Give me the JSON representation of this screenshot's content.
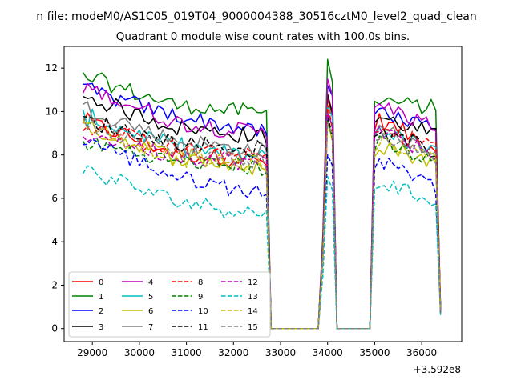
{
  "chart_data": {
    "type": "line",
    "suptitle": "n file: modeM0/AS1C05_019T04_9000004388_30516cztM0_level2_quad_clean",
    "title": "Quadrant 0 module wise count rates with 100.0s bins.",
    "xlabel": "",
    "ylabel": "",
    "x_offset_label": "+3.592e8",
    "xlim": [
      28400,
      36850
    ],
    "ylim": [
      -0.6,
      13.0
    ],
    "x_ticks": [
      29000,
      30000,
      31000,
      32000,
      33000,
      34000,
      35000,
      36000
    ],
    "x_tick_labels": [
      "29000",
      "30000",
      "31000",
      "32000",
      "33000",
      "34000",
      "35000",
      "36000"
    ],
    "y_ticks": [
      0,
      2,
      4,
      6,
      8,
      10,
      12
    ],
    "y_tick_labels": [
      "0",
      "2",
      "4",
      "6",
      "8",
      "10",
      "12"
    ],
    "grid": false,
    "legend_position": "lower-left",
    "segments": [
      {
        "x_start": 28800,
        "x_end": 32700,
        "shape": "plateau"
      },
      {
        "x_start": 32800,
        "x_end": 33800,
        "shape": "zero"
      },
      {
        "x_start": 33900,
        "x_end": 34200,
        "shape": "spike"
      },
      {
        "x_start": 34200,
        "x_end": 34900,
        "shape": "zero"
      },
      {
        "x_start": 35000,
        "x_end": 36400,
        "shape": "plateau"
      }
    ],
    "series": [
      {
        "name": "0",
        "color": "#ff0000",
        "dashed": false,
        "start": 9.6,
        "mid": 8.1,
        "end": 7.7,
        "spike": 10.6,
        "seg2_start": 9.7,
        "seg2_end": 8.3
      },
      {
        "name": "1",
        "color": "#008000",
        "dashed": false,
        "start": 11.6,
        "mid": 10.3,
        "end": 9.9,
        "spike": 12.4,
        "seg2_start": 10.6,
        "seg2_end": 10.1
      },
      {
        "name": "2",
        "color": "#0000ff",
        "dashed": false,
        "start": 11.0,
        "mid": 9.8,
        "end": 9.0,
        "spike": 11.2,
        "seg2_start": 10.2,
        "seg2_end": 9.0
      },
      {
        "name": "3",
        "color": "#000000",
        "dashed": false,
        "start": 10.7,
        "mid": 9.3,
        "end": 8.8,
        "spike": 10.8,
        "seg2_start": 9.8,
        "seg2_end": 8.9
      },
      {
        "name": "4",
        "color": "#bf00bf",
        "dashed": false,
        "start": 11.2,
        "mid": 9.5,
        "end": 9.0,
        "spike": 11.5,
        "seg2_start": 10.4,
        "seg2_end": 9.3
      },
      {
        "name": "5",
        "color": "#00bfbf",
        "dashed": false,
        "start": 9.8,
        "mid": 8.4,
        "end": 7.8,
        "spike": 10.3,
        "seg2_start": 9.3,
        "seg2_end": 8.1
      },
      {
        "name": "6",
        "color": "#bfbf00",
        "dashed": false,
        "start": 9.3,
        "mid": 7.9,
        "end": 7.3,
        "spike": 9.6,
        "seg2_start": 8.6,
        "seg2_end": 7.6
      },
      {
        "name": "7",
        "color": "#808080",
        "dashed": false,
        "start": 10.2,
        "mid": 8.7,
        "end": 8.1,
        "spike": 10.1,
        "seg2_start": 9.3,
        "seg2_end": 8.2
      },
      {
        "name": "8",
        "color": "#ff0000",
        "dashed": true,
        "start": 9.3,
        "mid": 8.3,
        "end": 7.9,
        "spike": 10.3,
        "seg2_start": 9.2,
        "seg2_end": 8.5
      },
      {
        "name": "9",
        "color": "#008000",
        "dashed": true,
        "start": 8.6,
        "mid": 7.7,
        "end": 7.4,
        "spike": 9.6,
        "seg2_start": 8.6,
        "seg2_end": 7.6
      },
      {
        "name": "10",
        "color": "#0000ff",
        "dashed": true,
        "start": 8.8,
        "mid": 7.0,
        "end": 6.2,
        "spike": 8.0,
        "seg2_start": 7.9,
        "seg2_end": 6.5
      },
      {
        "name": "11",
        "color": "#000000",
        "dashed": true,
        "start": 9.6,
        "mid": 8.6,
        "end": 8.2,
        "spike": 9.8,
        "seg2_start": 9.0,
        "seg2_end": 8.2
      },
      {
        "name": "12",
        "color": "#bf00bf",
        "dashed": true,
        "start": 9.0,
        "mid": 8.0,
        "end": 7.6,
        "spike": 9.9,
        "seg2_start": 9.1,
        "seg2_end": 8.1
      },
      {
        "name": "13",
        "color": "#00bfbf",
        "dashed": true,
        "start": 7.3,
        "mid": 5.9,
        "end": 5.3,
        "spike": 7.0,
        "seg2_start": 6.8,
        "seg2_end": 5.9
      },
      {
        "name": "14",
        "color": "#bfbf00",
        "dashed": true,
        "start": 9.4,
        "mid": 7.9,
        "end": 7.5,
        "spike": 9.4,
        "seg2_start": 8.8,
        "seg2_end": 7.8
      },
      {
        "name": "15",
        "color": "#808080",
        "dashed": true,
        "start": 9.5,
        "mid": 8.2,
        "end": 7.7,
        "spike": 9.5,
        "seg2_start": 8.9,
        "seg2_end": 7.9
      }
    ]
  }
}
